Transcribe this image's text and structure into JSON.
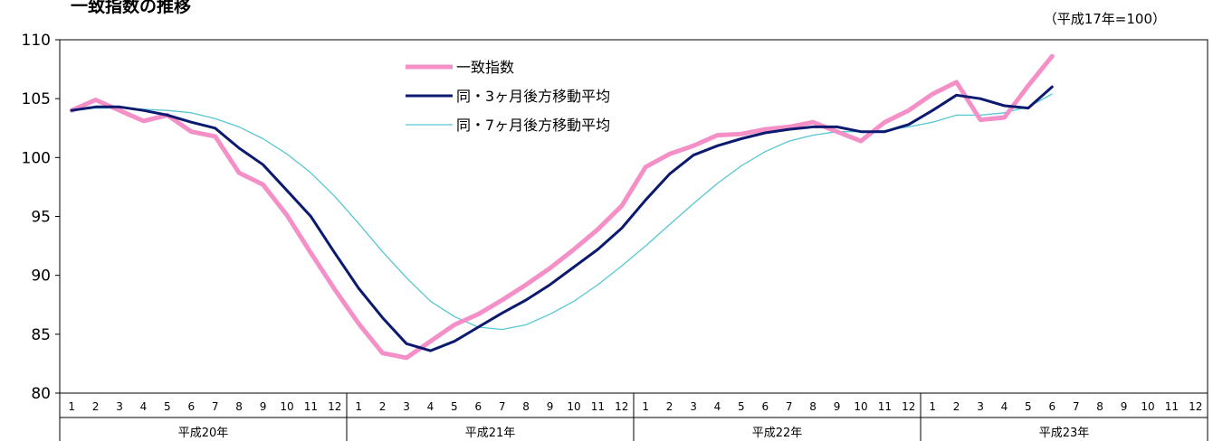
{
  "title": "一致指数の推移",
  "unit_note": "（平成17年=100）",
  "colors": {
    "coincident": "#f48fc8",
    "ma3": "#0b1a6e",
    "ma7": "#56c7d2"
  },
  "chart_data": {
    "type": "line",
    "title": "一致指数の推移",
    "ylim": [
      80,
      110
    ],
    "y_ticks": [
      110,
      105,
      100,
      95,
      90,
      85,
      80
    ],
    "years": [
      "平成20年",
      "平成21年",
      "平成22年",
      "平成23年"
    ],
    "months": [
      "1",
      "2",
      "3",
      "4",
      "5",
      "6",
      "7",
      "8",
      "9",
      "10",
      "11",
      "12"
    ],
    "legend_position": "top-center",
    "grid": false,
    "series": [
      {
        "name": "一致指数",
        "values": [
          104.0,
          104.9,
          104.0,
          103.1,
          103.6,
          102.2,
          101.8,
          98.7,
          97.7,
          95.1,
          91.9,
          88.8,
          85.9,
          83.4,
          83.0,
          84.4,
          85.8,
          86.7,
          87.9,
          89.2,
          90.6,
          92.2,
          93.9,
          95.9,
          99.2,
          100.3,
          101.0,
          101.9,
          102.0,
          102.4,
          102.6,
          103.0,
          102.2,
          101.4,
          103.0,
          104.0,
          105.4,
          106.4,
          103.2,
          103.4,
          106.1,
          108.6
        ]
      },
      {
        "name": "同・3ヶ月後方移動平均",
        "values": [
          104.0,
          104.3,
          104.3,
          104.0,
          103.6,
          103.0,
          102.5,
          100.8,
          99.4,
          97.2,
          95.0,
          91.9,
          88.9,
          86.4,
          84.2,
          83.6,
          84.4,
          85.6,
          86.8,
          87.9,
          89.2,
          90.7,
          92.2,
          94.0,
          96.4,
          98.6,
          100.2,
          101.0,
          101.6,
          102.1,
          102.4,
          102.6,
          102.6,
          102.2,
          102.2,
          102.8,
          104.0,
          105.3,
          105.0,
          104.4,
          104.2,
          106.0
        ]
      },
      {
        "name": "同・7ヶ月後方移動平均",
        "values": [
          104.0,
          104.2,
          104.2,
          104.1,
          104.0,
          103.8,
          103.3,
          102.6,
          101.6,
          100.3,
          98.7,
          96.7,
          94.4,
          92.0,
          89.8,
          87.8,
          86.5,
          85.6,
          85.4,
          85.8,
          86.7,
          87.8,
          89.2,
          90.8,
          92.5,
          94.3,
          96.1,
          97.8,
          99.3,
          100.5,
          101.4,
          101.9,
          102.2,
          102.2,
          102.3,
          102.6,
          103.0,
          103.6,
          103.6,
          103.8,
          104.3,
          105.4
        ]
      }
    ]
  }
}
